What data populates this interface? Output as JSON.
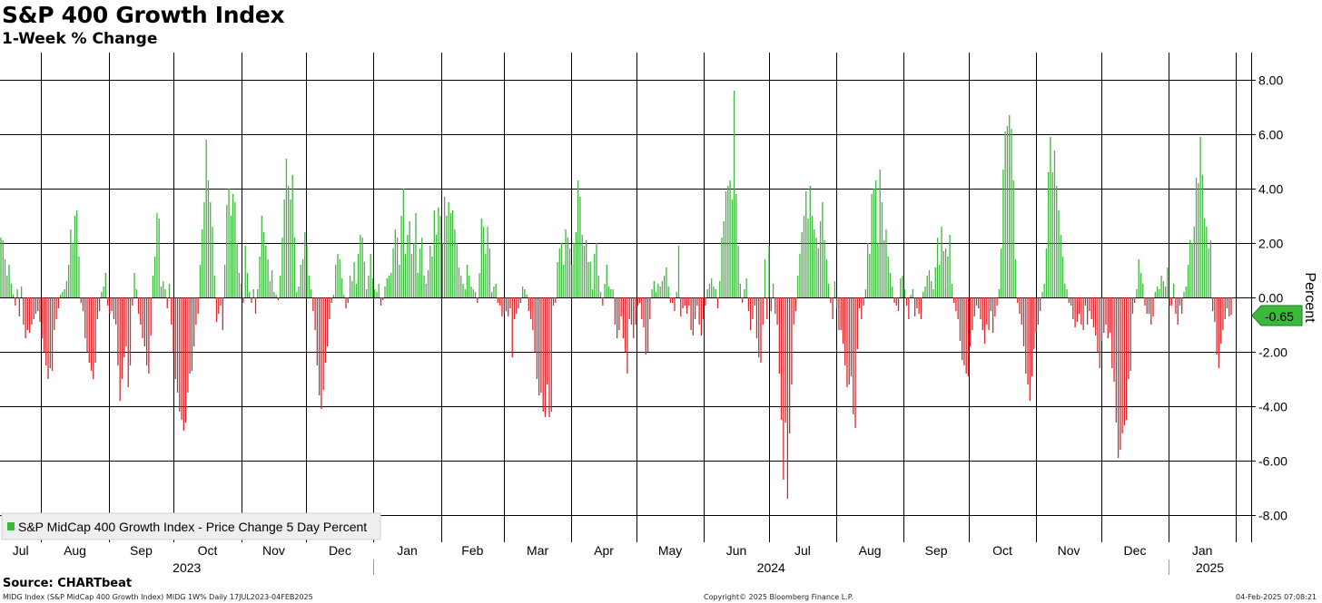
{
  "title": "S&P 400 Growth Index",
  "subtitle": "1-Week % Change",
  "source": "Source: CHARTbeat",
  "footer": {
    "ticker_info": "MIDG Index (S&P MidCap 400 Growth Index) MIDG 1W% Daily 17JUL2023-04FEB2025",
    "copyright": "Copyright© 2025 Bloomberg Finance L.P.",
    "timestamp": "04-Feb-2025 07:08:21"
  },
  "colors": {
    "positive": "#3cb93c",
    "negative": "#d9262c",
    "grid": "#000000",
    "last_box": "#3cb93c"
  },
  "chart_data": {
    "type": "bar",
    "title": "S&P 400 Growth Index",
    "subtitle": "1-Week % Change",
    "ylabel": "Percent",
    "ylim": [
      -9.0,
      9.0
    ],
    "yticks": [
      "8.00",
      "6.00",
      "4.00",
      "2.00",
      "0.00",
      "-2.00",
      "-4.00",
      "-6.00",
      "-8.00"
    ],
    "ytick_values": [
      8,
      6,
      4,
      2,
      0,
      -2,
      -4,
      -6,
      -8
    ],
    "x_start": "2023-07-17",
    "x_end": "2025-02-04",
    "month_labels": [
      "Jul",
      "Aug",
      "Sep",
      "Oct",
      "Nov",
      "Dec",
      "Jan",
      "Feb",
      "Mar",
      "Apr",
      "May",
      "Jun",
      "Jul",
      "Aug",
      "Sep",
      "Oct",
      "Nov",
      "Dec",
      "Jan"
    ],
    "year_labels": [
      "2023",
      "2024",
      "2025"
    ],
    "legend": {
      "label": "S&P MidCap 400 Growth Index - Price Change 5 Day Percent",
      "position": "bottom-left"
    },
    "last_value": -0.65,
    "last_value_label": "-0.65",
    "grid": true,
    "series": [
      {
        "name": "S&P MidCap 400 Growth Index - Price Change 5 Day Percent",
        "values": [
          2.2,
          2.1,
          1.4,
          0.8,
          1.2,
          0.5,
          0.1,
          -0.3,
          0.3,
          -0.7,
          0.4,
          -1.0,
          -1.5,
          -1.2,
          -1.3,
          -1.0,
          -0.8,
          -0.6,
          -0.5,
          -0.9,
          -1.5,
          -2.0,
          -2.5,
          -3.0,
          -2.6,
          -2.7,
          -1.2,
          -0.8,
          -0.4,
          0.1,
          0.2,
          0.3,
          0.6,
          1.2,
          2.5,
          2.0,
          3.0,
          3.2,
          1.5,
          -0.2,
          -0.5,
          -1.5,
          -2.0,
          -2.4,
          -2.7,
          -3.0,
          -2.4,
          -0.8,
          -0.5,
          0.2,
          0.4,
          0.9,
          -0.3,
          -0.6,
          -0.5,
          -0.8,
          -1.0,
          -2.5,
          -3.8,
          -3.0,
          -2.2,
          -1.8,
          -3.3,
          -2.5,
          -0.3,
          0.9,
          0.3,
          -0.6,
          -1.0,
          -1.5,
          -1.8,
          -2.5,
          -2.8,
          -1.4,
          0.8,
          1.5,
          3.1,
          2.9,
          0.4,
          0.6,
          0.3,
          -0.4,
          0.5,
          -1.0,
          -2.0,
          -3.0,
          -3.5,
          -4.2,
          -4.5,
          -4.9,
          -4.6,
          -3.5,
          -2.8,
          -2.7,
          -1.8,
          -1.0,
          -0.6,
          1.2,
          2.5,
          3.5,
          5.8,
          4.3,
          3.5,
          2.6,
          0.8,
          -0.9,
          -0.6,
          -0.3,
          -1.2,
          1.2,
          3.4,
          4.0,
          3.0,
          3.8,
          3.5,
          2.0,
          0.9,
          0.5,
          -0.2,
          1.9,
          0.9,
          0.2,
          -0.2,
          0.3,
          -0.6,
          0.3,
          1.5,
          3.0,
          2.4,
          1.9,
          1.4,
          0.6,
          1.0,
          0.2,
          0.1,
          -0.1,
          0.8,
          2.2,
          3.6,
          5.1,
          4.1,
          3.6,
          4.5,
          2.2,
          0.2,
          0.4,
          1.2,
          1.4,
          2.4,
          1.9,
          0.8,
          0.3,
          -0.5,
          -1.2,
          -2.5,
          -3.6,
          -4.1,
          -3.4,
          -2.4,
          -1.8,
          -0.8,
          -0.2,
          0.1,
          1.2,
          1.6,
          1.4,
          0.7,
          0.1,
          -0.4,
          -0.2,
          0.8,
          0.6,
          1.3,
          0.5,
          1.6,
          2.3,
          2.2,
          1.3,
          0.3,
          0.8,
          1.6,
          0.7,
          0.3,
          0.2,
          0.5,
          -0.3,
          -0.1,
          0.4,
          0.7,
          0.8,
          0.9,
          1.8,
          2.5,
          2.2,
          1.2,
          3.0,
          4.0,
          1.6,
          2.3,
          2.8,
          1.6,
          2.0,
          3.1,
          0.9,
          1.8,
          2.2,
          0.8,
          0.5,
          1.0,
          1.9,
          1.5,
          3.2,
          2.3,
          3.3,
          3.0,
          2.0,
          3.7,
          3.0,
          3.5,
          3.1,
          3.2,
          2.5,
          2.0,
          1.1,
          0.8,
          0.5,
          0.3,
          1.2,
          0.8,
          0.4,
          0.3,
          0.2,
          -0.2,
          0.9,
          2.9,
          2.6,
          1.6,
          2.6,
          1.8,
          0.2,
          0.4,
          0.5,
          -0.2,
          -0.3,
          -0.7,
          -0.6,
          -0.5,
          -0.7,
          -0.4,
          -2.2,
          -0.8,
          -0.6,
          -0.4,
          -0.2,
          0.4,
          0.3,
          0.1,
          -0.5,
          -0.8,
          -1.2,
          -2.0,
          -3.0,
          -3.6,
          -3.5,
          -4.2,
          -4.4,
          -3.2,
          -4.4,
          -4.2,
          -0.3,
          -0.2,
          1.3,
          1.8,
          2.0,
          1.2,
          2.5,
          2.2,
          1.8,
          1.2,
          2.0,
          2.4,
          4.3,
          3.7,
          2.3,
          1.9,
          2.1,
          1.3,
          1.3,
          0.3,
          1.6,
          2.0,
          0.8,
          0.2,
          -0.3,
          0.5,
          1.2,
          0.4,
          0.3,
          0.3,
          -1.0,
          -1.5,
          -1.2,
          -0.7,
          -1.5,
          -2.0,
          -2.8,
          -0.8,
          -1.0,
          -1.5,
          -1.0,
          -0.3,
          -0.2,
          -0.8,
          -1.1,
          -2.1,
          -2.0,
          -0.8,
          0.3,
          0.6,
          0.2,
          0.5,
          0.4,
          0.6,
          0.8,
          1.1,
          0.4,
          -0.2,
          -0.2,
          -0.5,
          0.2,
          1.9,
          -0.7,
          -0.4,
          -0.3,
          -0.6,
          -0.3,
          -1.2,
          -1.4,
          -0.8,
          -0.3,
          -1.0,
          -1.4,
          -0.8,
          -0.3,
          0.3,
          0.5,
          0.7,
          0.4,
          0.3,
          -0.4,
          0.6,
          2.2,
          2.8,
          3.9,
          4.1,
          4.3,
          3.6,
          7.6,
          3.8,
          1.9,
          0.5,
          -0.2,
          0.3,
          0.7,
          -0.5,
          -1.2,
          -0.8,
          -0.3,
          -1.5,
          -2.2,
          -2.4,
          -1.0,
          1.4,
          -0.8,
          1.9,
          -0.5,
          0.5,
          -0.6,
          -1.0,
          -2.8,
          -4.5,
          -6.7,
          -4.6,
          -7.4,
          -5.0,
          -3.2,
          -1.0,
          -0.5,
          0.8,
          1.6,
          2.4,
          3.0,
          3.9,
          2.9,
          4.1,
          3.0,
          2.5,
          2.2,
          1.8,
          2.8,
          3.5,
          2.1,
          1.4,
          0.5,
          -0.2,
          -0.8,
          0.6,
          -0.4,
          -1.2,
          -1.2,
          -1.7,
          -2.5,
          -3.3,
          -3.2,
          -2.9,
          -4.3,
          -4.8,
          -1.9,
          -0.4,
          -0.8,
          -0.3,
          0.3,
          2.0,
          1.6,
          3.8,
          4.0,
          4.3,
          2.0,
          4.7,
          3.5,
          2.1,
          2.5,
          1.5,
          0.9,
          0.4,
          -0.2,
          -0.3,
          -0.5,
          0.7,
          0.8,
          0.3,
          -0.3,
          -0.8,
          0.1,
          0.3,
          -0.7,
          -0.4,
          -0.6,
          -0.8,
          0.2,
          0.4,
          0.8,
          1.0,
          0.6,
          0.3,
          1.1,
          2.2,
          1.2,
          2.6,
          1.7,
          1.8,
          1.5,
          2.3,
          0.5,
          -0.2,
          -0.5,
          -0.8,
          -1.6,
          -2.3,
          -2.5,
          -2.8,
          -2.9,
          -1.8,
          -1.2,
          -0.7,
          -0.3,
          -0.4,
          -0.8,
          -1.2,
          -1.7,
          -1.0,
          -1.2,
          -0.5,
          -1.3,
          -0.7,
          -0.3,
          0.3,
          1.8,
          4.7,
          6.1,
          6.3,
          6.7,
          6.2,
          4.3,
          1.4,
          -0.2,
          -0.6,
          -1.0,
          -1.8,
          -2.8,
          -3.2,
          -3.8,
          -2.9,
          -1.9,
          -1.3,
          -1.0,
          -0.5,
          0.2,
          0.5,
          1.8,
          4.6,
          5.9,
          4.6,
          5.4,
          4.1,
          3.2,
          2.3,
          1.5,
          0.5,
          0.3,
          -0.2,
          -0.3,
          -0.8,
          -1.1,
          -0.9,
          -0.6,
          -1.0,
          -1.2,
          -0.3,
          -1.0,
          -0.5,
          -0.8,
          -1.1,
          -1.4,
          -2.0,
          -2.6,
          -1.6,
          -1.3,
          -1.0,
          -1.5,
          -1.3,
          -2.6,
          -3.1,
          -4.6,
          -5.9,
          -5.6,
          -5.0,
          -4.7,
          -4.5,
          -3.0,
          -2.7,
          -0.6,
          -0.2,
          0.3,
          1.4,
          0.9,
          0.5,
          -0.3,
          -0.6,
          -0.6,
          -1.0,
          -0.7,
          0.2,
          0.4,
          0.3,
          0.8,
          0.6,
          0.4,
          1.1,
          -0.3,
          -0.3,
          0.5,
          -0.6,
          -1.0,
          -0.3,
          -0.6,
          0.2,
          0.4,
          1.2,
          2.1,
          2.0,
          2.6,
          4.4,
          4.2,
          5.9,
          4.5,
          2.9,
          2.6,
          1.8,
          2.1,
          -0.5,
          -0.9,
          -2.1,
          -2.6,
          -1.7,
          -1.2,
          -0.8,
          -0.4,
          -0.7,
          -0.65
        ]
      }
    ]
  }
}
